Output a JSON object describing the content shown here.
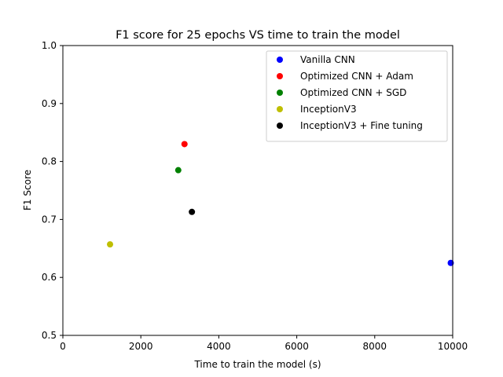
{
  "chart_data": {
    "type": "scatter",
    "title": "F1 score for 25 epochs VS time to train the model",
    "xlabel": "Time to train the model (s)",
    "ylabel": "F1 Score",
    "xlim": [
      0,
      10000
    ],
    "ylim": [
      0.5,
      1.0
    ],
    "xticks": [
      0,
      2000,
      4000,
      6000,
      8000,
      10000
    ],
    "xtick_labels": [
      "0",
      "2000",
      "4000",
      "6000",
      "8000",
      "10000"
    ],
    "yticks": [
      0.5,
      0.6,
      0.7,
      0.8,
      0.9,
      1.0
    ],
    "ytick_labels": [
      "0.5",
      "0.6",
      "0.7",
      "0.8",
      "0.9",
      "1.0"
    ],
    "grid": false,
    "legend_position": "top-right",
    "series": [
      {
        "name": "Vanilla CNN",
        "color": "#0000ff",
        "x": [
          9950
        ],
        "y": [
          0.625
        ]
      },
      {
        "name": "Optimized CNN + Adam",
        "color": "#ff0000",
        "x": [
          3120
        ],
        "y": [
          0.83
        ]
      },
      {
        "name": "Optimized CNN + SGD",
        "color": "#008000",
        "x": [
          2960
        ],
        "y": [
          0.785
        ]
      },
      {
        "name": "InceptionV3",
        "color": "#bfbf00",
        "x": [
          1210
        ],
        "y": [
          0.657
        ]
      },
      {
        "name": "InceptionV3 + Fine tuning",
        "color": "#000000",
        "x": [
          3310
        ],
        "y": [
          0.713
        ]
      }
    ]
  }
}
